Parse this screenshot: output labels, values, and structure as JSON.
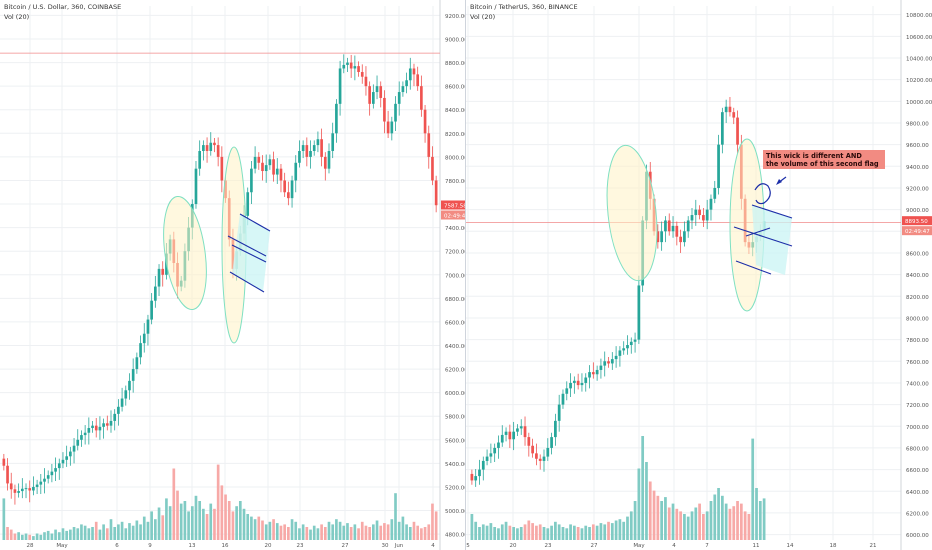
{
  "colors": {
    "up": "#26a69a",
    "down": "#ef5350",
    "up_vol": "#80cbc4",
    "down_vol": "#f7a9a7",
    "grid": "#eef0f3",
    "axis_text": "#555555"
  },
  "chart_data": [
    {
      "type": "candlestick",
      "header": {
        "title": "Bitcoin / U.S. Dollar, 360, COINBASE",
        "subtitle": "Vol (20)"
      },
      "y_ticks": [
        "9200.00",
        "9000.00",
        "8800.00",
        "8600.00",
        "8400.00",
        "8200.00",
        "8000.00",
        "7800.00",
        "7600.00",
        "7400.00",
        "7200.00",
        "7000.00",
        "6800.00",
        "6600.00",
        "6400.00",
        "6200.00",
        "6000.00",
        "5800.00",
        "5600.00",
        "5400.00",
        "5200.00",
        "5000.00",
        "4800.00"
      ],
      "ylim": [
        4750,
        9280
      ],
      "x_ticks": [
        "28",
        "May",
        "6",
        "9",
        "13",
        "16",
        "20",
        "23",
        "27",
        "30",
        "Jun",
        "4"
      ],
      "last_price": "7587.58",
      "last_time": "02:49:48",
      "resistance": 8880,
      "closes": [
        5380,
        5230,
        5180,
        5150,
        5165,
        5185,
        5190,
        5170,
        5200,
        5220,
        5245,
        5270,
        5300,
        5330,
        5360,
        5400,
        5430,
        5460,
        5500,
        5550,
        5600,
        5640,
        5660,
        5700,
        5720,
        5680,
        5710,
        5740,
        5720,
        5760,
        5820,
        5880,
        5950,
        6020,
        6100,
        6200,
        6300,
        6420,
        6500,
        6620,
        6780,
        6900,
        7050,
        7000,
        7180,
        7300,
        7100,
        6900,
        6950,
        7200,
        7400,
        7600,
        7900,
        8050,
        8100,
        8050,
        8120,
        8100,
        8000,
        7800,
        7650,
        7300,
        7050,
        7200,
        7350,
        7500,
        7700,
        7900,
        8000,
        7950,
        7880,
        7930,
        7980,
        7850,
        7900,
        7800,
        7700,
        7650,
        7800,
        7950,
        8050,
        8100,
        8000,
        8050,
        8100,
        8150,
        8000,
        7900,
        8050,
        8200,
        8450,
        8750,
        8780,
        8800,
        8750,
        8770,
        8720,
        8680,
        8600,
        8450,
        8550,
        8600,
        8500,
        8300,
        8200,
        8300,
        8450,
        8550,
        8600,
        8650,
        8750,
        8700,
        8600,
        8400,
        8200,
        8000,
        7800,
        7590
      ],
      "volumes": [
        0.32,
        0.1,
        0.08,
        0.05,
        0.06,
        0.04,
        0.05,
        0.04,
        0.03,
        0.05,
        0.04,
        0.06,
        0.07,
        0.05,
        0.08,
        0.06,
        0.09,
        0.07,
        0.08,
        0.1,
        0.09,
        0.12,
        0.11,
        0.09,
        0.1,
        0.14,
        0.08,
        0.12,
        0.09,
        0.16,
        0.1,
        0.12,
        0.14,
        0.09,
        0.13,
        0.11,
        0.15,
        0.12,
        0.18,
        0.14,
        0.22,
        0.16,
        0.25,
        0.19,
        0.32,
        0.26,
        0.55,
        0.38,
        0.28,
        0.3,
        0.22,
        0.26,
        0.34,
        0.3,
        0.24,
        0.2,
        0.28,
        0.24,
        0.58,
        0.42,
        0.35,
        0.3,
        0.22,
        0.26,
        0.3,
        0.24,
        0.2,
        0.18,
        0.16,
        0.18,
        0.15,
        0.12,
        0.14,
        0.16,
        0.13,
        0.11,
        0.12,
        0.1,
        0.16,
        0.14,
        0.09,
        0.12,
        0.1,
        0.08,
        0.11,
        0.09,
        0.12,
        0.1,
        0.14,
        0.12,
        0.16,
        0.14,
        0.11,
        0.13,
        0.1,
        0.12,
        0.09,
        0.14,
        0.11,
        0.1,
        0.12,
        0.15,
        0.11,
        0.13,
        0.12,
        0.16,
        0.36,
        0.14,
        0.18,
        0.12,
        0.1,
        0.14,
        0.11,
        0.09,
        0.1,
        0.12,
        0.28,
        0.22
      ]
    },
    {
      "type": "candlestick",
      "header": {
        "title": "Bitcoin / TetherUS, 360, BINANCE",
        "subtitle": "Vol (20)"
      },
      "y_ticks": [
        "10800.00",
        "10600.00",
        "10400.00",
        "10200.00",
        "10000.00",
        "9800.00",
        "9600.00",
        "9400.00",
        "9200.00",
        "9000.00",
        "8800.00",
        "8600.00",
        "8400.00",
        "8200.00",
        "8000.00",
        "7800.00",
        "7600.00",
        "7400.00",
        "7200.00",
        "7000.00",
        "6800.00",
        "6600.00",
        "6400.00",
        "6200.00",
        "6000.00"
      ],
      "ylim": [
        5950,
        10880
      ],
      "x_ticks": [
        "5",
        "20",
        "23",
        "27",
        "May",
        "4",
        "7",
        "11",
        "14",
        "18",
        "21"
      ],
      "last_price": "8893.50",
      "last_time": "02:49:47",
      "resistance": 8880,
      "annotation": "This wick is different AND\nthe volume of this second flag",
      "closes": [
        6500,
        6540,
        6600,
        6680,
        6720,
        6750,
        6800,
        6850,
        6920,
        6950,
        6880,
        6950,
        6980,
        7000,
        6900,
        6820,
        6750,
        6700,
        6680,
        6720,
        6800,
        6900,
        7050,
        7200,
        7300,
        7350,
        7400,
        7420,
        7380,
        7400,
        7450,
        7500,
        7480,
        7520,
        7560,
        7600,
        7580,
        7620,
        7650,
        7700,
        7720,
        7750,
        7780,
        7800,
        8300,
        8900,
        9350,
        9100,
        8800,
        8700,
        8800,
        8900,
        8800,
        8850,
        8750,
        8700,
        8800,
        8900,
        8950,
        9000,
        8950,
        8900,
        9000,
        9100,
        9200,
        9600,
        9900,
        9950,
        9900,
        9850,
        9600,
        9100,
        8700,
        8650,
        8700,
        8750,
        8800,
        8893
      ],
      "volumes": [
        0.2,
        0.14,
        0.1,
        0.12,
        0.11,
        0.13,
        0.1,
        0.09,
        0.12,
        0.14,
        0.11,
        0.1,
        0.09,
        0.1,
        0.12,
        0.15,
        0.13,
        0.11,
        0.12,
        0.1,
        0.09,
        0.11,
        0.14,
        0.12,
        0.1,
        0.09,
        0.12,
        0.11,
        0.1,
        0.09,
        0.11,
        0.1,
        0.12,
        0.11,
        0.13,
        0.12,
        0.14,
        0.13,
        0.15,
        0.16,
        0.14,
        0.18,
        0.22,
        0.3,
        0.55,
        0.8,
        0.6,
        0.45,
        0.38,
        0.34,
        0.3,
        0.33,
        0.25,
        0.28,
        0.24,
        0.22,
        0.2,
        0.18,
        0.22,
        0.25,
        0.28,
        0.2,
        0.22,
        0.3,
        0.35,
        0.4,
        0.34,
        0.28,
        0.24,
        0.26,
        0.3,
        0.28,
        0.22,
        0.2,
        0.78,
        0.4,
        0.3,
        0.32
      ]
    }
  ]
}
